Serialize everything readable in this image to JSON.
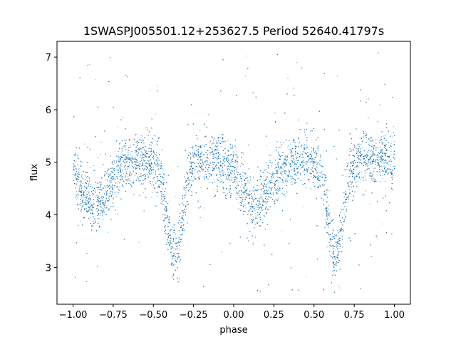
{
  "chart_data": {
    "type": "scatter",
    "title": "1SWASPJ005501.12+253627.5 Period 52640.41797s",
    "xlabel": "phase",
    "ylabel": "flux",
    "xlim": [
      -1.1,
      1.1
    ],
    "ylim": [
      2.3,
      7.3
    ],
    "x_ticks": [
      -1.0,
      -0.75,
      -0.5,
      -0.25,
      0.0,
      0.25,
      0.5,
      0.75,
      1.0
    ],
    "x_tick_labels": [
      "−1.00",
      "−0.75",
      "−0.50",
      "−0.25",
      "0.00",
      "0.25",
      "0.50",
      "0.75",
      "1.00"
    ],
    "y_ticks": [
      3,
      4,
      5,
      6,
      7
    ],
    "y_tick_labels": [
      "3",
      "4",
      "5",
      "6",
      "7"
    ],
    "grid": false,
    "marker_color": "#1f77b4",
    "series": [
      {
        "x_range": [
          -1.0,
          1.0
        ],
        "baseline_flux": 5.0,
        "primary_minima": [
          {
            "phase": -0.37,
            "flux": 3.3
          },
          {
            "phase": 0.63,
            "flux": 3.3
          }
        ],
        "secondary_minima": [
          {
            "phase": -0.87,
            "flux": 4.3
          },
          {
            "phase": 0.13,
            "flux": 4.3
          }
        ],
        "maxima": [
          {
            "phase": -0.62,
            "flux": 5.1
          },
          {
            "phase": -0.12,
            "flux": 5.1
          },
          {
            "phase": 0.38,
            "flux": 5.1
          },
          {
            "phase": 0.88,
            "flux": 5.1
          }
        ],
        "scatter_spread": 0.25,
        "outlier_range": [
          2.5,
          7.1
        ]
      }
    ]
  }
}
